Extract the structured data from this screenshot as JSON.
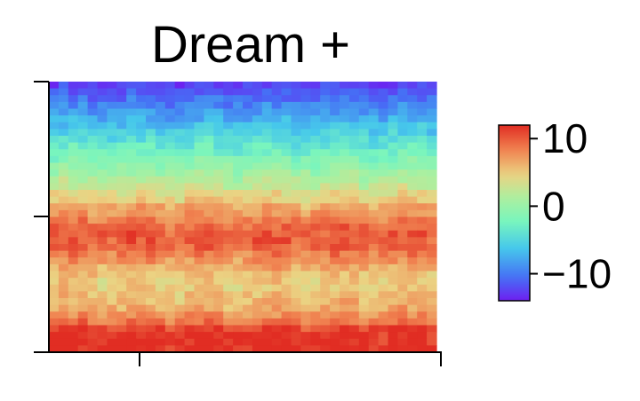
{
  "chart_data": {
    "type": "heatmap",
    "title": "Dream +",
    "xlabel": "",
    "ylabel": "",
    "grid": false,
    "legend": "none",
    "x_tick_labels": [
      "",
      ""
    ],
    "y_tick_labels": [
      "",
      "",
      ""
    ],
    "colormap": "rainbow",
    "colorbar": {
      "position": "right",
      "range": [
        -14,
        12
      ],
      "ticks": [
        10,
        0,
        -10
      ],
      "tick_labels": [
        "10",
        "0",
        "−10"
      ]
    },
    "n_rows": 40,
    "n_cols": 40,
    "row_profile_top_to_bottom": [
      -12.5,
      -11.5,
      -10.5,
      -9.5,
      -8.5,
      -7.5,
      -6.5,
      -5.5,
      -4.5,
      -3.5,
      -2.5,
      -1.5,
      -0.5,
      0.5,
      1.5,
      2.5,
      4.0,
      5.0,
      6.5,
      7.5,
      8.5,
      9.5,
      10.0,
      10.0,
      9.5,
      8.5,
      7.5,
      6.5,
      5.5,
      5.0,
      5.0,
      5.5,
      6.0,
      6.5,
      7.5,
      9.0,
      11.0,
      12.0,
      12.0,
      12.0
    ],
    "noise_amplitude": 1.2
  }
}
